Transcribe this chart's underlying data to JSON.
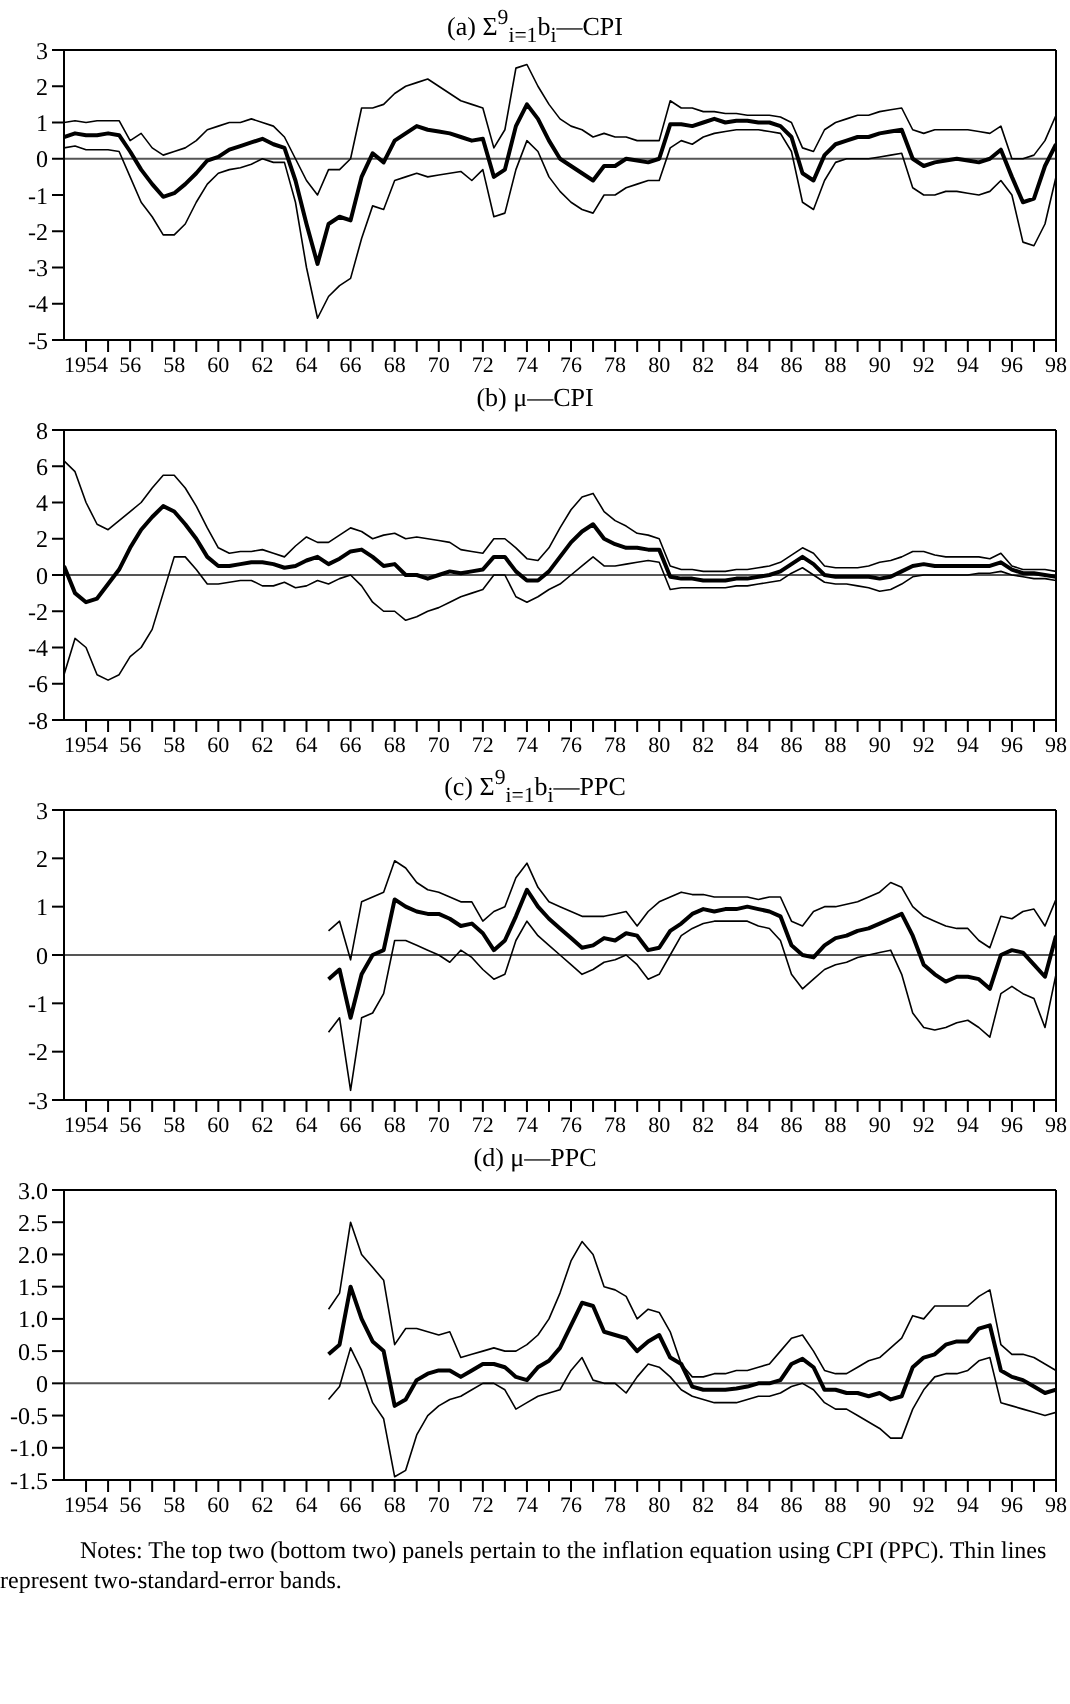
{
  "chart_data": [
    {
      "type": "line",
      "title": "(a) Σ$^{9}$$_{i=1}$b$_{i}$—CPI",
      "marker": "none",
      "x": [
        1953,
        1953.5,
        1954,
        1954.5,
        1955,
        1955.5,
        1956,
        1956.5,
        1957,
        1957.5,
        1958,
        1958.5,
        1959,
        1959.5,
        1960,
        1960.5,
        1961,
        1961.5,
        1962,
        1962.5,
        1963,
        1963.5,
        1964,
        1964.5,
        1965,
        1965.5,
        1966,
        1966.5,
        1967,
        1967.5,
        1968,
        1968.5,
        1969,
        1969.5,
        1970,
        1970.5,
        1971,
        1971.5,
        1972,
        1972.5,
        1973,
        1973.5,
        1974,
        1974.5,
        1975,
        1975.5,
        1976,
        1976.5,
        1977,
        1977.5,
        1978,
        1978.5,
        1979,
        1979.5,
        1980,
        1980.5,
        1981,
        1981.5,
        1982,
        1982.5,
        1983,
        1983.5,
        1984,
        1984.5,
        1985,
        1985.5,
        1986,
        1986.5,
        1987,
        1987.5,
        1988,
        1988.5,
        1989,
        1989.5,
        1990,
        1990.5,
        1991,
        1991.5,
        1992,
        1992.5,
        1993,
        1993.5,
        1994,
        1994.5,
        1995,
        1995.5,
        1996,
        1996.5,
        1997,
        1997.5,
        1998
      ],
      "series": [
        {
          "color": "#000000",
          "values": [
            0.6,
            0.7,
            0.65,
            0.65,
            0.7,
            0.65,
            0.2,
            -0.3,
            -0.7,
            -1.05,
            -0.95,
            -0.7,
            -0.4,
            -0.05,
            0.05,
            0.25,
            0.35,
            0.45,
            0.55,
            0.4,
            0.3,
            -0.6,
            -1.8,
            -2.9,
            -1.8,
            -1.6,
            -1.7,
            -0.5,
            0.15,
            -0.1,
            0.5,
            0.7,
            0.9,
            0.8,
            0.75,
            0.7,
            0.6,
            0.5,
            0.55,
            -0.5,
            -0.3,
            0.9,
            1.5,
            1.1,
            0.5,
            0.0,
            -0.2,
            -0.4,
            -0.6,
            -0.2,
            -0.2,
            0.0,
            -0.05,
            -0.1,
            0.0,
            0.95,
            0.95,
            0.9,
            1.0,
            1.1,
            1.0,
            1.05,
            1.05,
            1.0,
            1.0,
            0.9,
            0.6,
            -0.4,
            -0.6,
            0.1,
            0.4,
            0.5,
            0.6,
            0.6,
            0.7,
            0.75,
            0.8,
            0.0,
            -0.2,
            -0.1,
            -0.05,
            0.0,
            -0.05,
            -0.1,
            0.0,
            0.25,
            -0.5,
            -1.2,
            -1.1,
            -0.2,
            0.4
          ]
        },
        {
          "color": "#000000",
          "values": [
            1.0,
            1.05,
            1.0,
            1.05,
            1.05,
            1.05,
            0.5,
            0.7,
            0.3,
            0.1,
            0.2,
            0.3,
            0.5,
            0.8,
            0.9,
            1.0,
            1.0,
            1.1,
            1.0,
            0.9,
            0.6,
            0.0,
            -0.6,
            -1.0,
            -0.3,
            -0.3,
            0.0,
            1.4,
            1.4,
            1.5,
            1.8,
            2.0,
            2.1,
            2.2,
            2.0,
            1.8,
            1.6,
            1.5,
            1.4,
            0.3,
            0.8,
            2.5,
            2.6,
            2.0,
            1.5,
            1.1,
            0.9,
            0.8,
            0.6,
            0.7,
            0.6,
            0.6,
            0.5,
            0.5,
            0.5,
            1.6,
            1.4,
            1.4,
            1.3,
            1.3,
            1.25,
            1.25,
            1.2,
            1.2,
            1.2,
            1.15,
            1.0,
            0.3,
            0.2,
            0.8,
            1.0,
            1.1,
            1.2,
            1.2,
            1.3,
            1.35,
            1.4,
            0.8,
            0.7,
            0.8,
            0.8,
            0.8,
            0.8,
            0.75,
            0.7,
            0.9,
            0.0,
            0.0,
            0.1,
            0.5,
            1.2
          ]
        },
        {
          "color": "#000000",
          "values": [
            0.3,
            0.35,
            0.25,
            0.25,
            0.25,
            0.2,
            -0.5,
            -1.2,
            -1.6,
            -2.1,
            -2.1,
            -1.8,
            -1.2,
            -0.7,
            -0.4,
            -0.3,
            -0.25,
            -0.15,
            0.0,
            -0.1,
            -0.1,
            -1.2,
            -3.0,
            -4.4,
            -3.8,
            -3.5,
            -3.3,
            -2.2,
            -1.3,
            -1.4,
            -0.6,
            -0.5,
            -0.4,
            -0.5,
            -0.45,
            -0.4,
            -0.35,
            -0.6,
            -0.3,
            -1.6,
            -1.5,
            -0.3,
            0.5,
            0.2,
            -0.5,
            -0.9,
            -1.2,
            -1.4,
            -1.5,
            -1.0,
            -1.0,
            -0.8,
            -0.7,
            -0.6,
            -0.6,
            0.3,
            0.5,
            0.4,
            0.6,
            0.7,
            0.75,
            0.8,
            0.8,
            0.8,
            0.75,
            0.7,
            0.2,
            -1.2,
            -1.4,
            -0.6,
            -0.1,
            0.0,
            0.0,
            0.0,
            0.05,
            0.1,
            0.15,
            -0.8,
            -1.0,
            -1.0,
            -0.9,
            -0.9,
            -0.95,
            -1.0,
            -0.9,
            -0.6,
            -1.0,
            -2.3,
            -2.4,
            -1.8,
            -0.5
          ]
        }
      ],
      "xlim": [
        1953,
        1998
      ],
      "xticks": [
        {
          "value": 1954,
          "label": "1954"
        },
        {
          "value": 1955,
          "label": null
        },
        {
          "value": 1956,
          "label": "56"
        },
        {
          "value": 1957,
          "label": null
        },
        {
          "value": 1958,
          "label": "58"
        },
        {
          "value": 1959,
          "label": null
        },
        {
          "value": 1960,
          "label": "60"
        },
        {
          "value": 1961,
          "label": null
        },
        {
          "value": 1962,
          "label": "62"
        },
        {
          "value": 1963,
          "label": null
        },
        {
          "value": 1964,
          "label": "64"
        },
        {
          "value": 1965,
          "label": null
        },
        {
          "value": 1966,
          "label": "66"
        },
        {
          "value": 1967,
          "label": null
        },
        {
          "value": 1968,
          "label": "68"
        },
        {
          "value": 1969,
          "label": null
        },
        {
          "value": 1970,
          "label": "70"
        },
        {
          "value": 1971,
          "label": null
        },
        {
          "value": 1972,
          "label": "72"
        },
        {
          "value": 1973,
          "label": null
        },
        {
          "value": 1974,
          "label": "74"
        },
        {
          "value": 1975,
          "label": null
        },
        {
          "value": 1976,
          "label": "76"
        },
        {
          "value": 1977,
          "label": null
        },
        {
          "value": 1978,
          "label": "78"
        },
        {
          "value": 1979,
          "label": null
        },
        {
          "value": 1980,
          "label": "80"
        },
        {
          "value": 1981,
          "label": null
        },
        {
          "value": 1982,
          "label": "82"
        },
        {
          "value": 1983,
          "label": null
        },
        {
          "value": 1984,
          "label": "84"
        },
        {
          "value": 1985,
          "label": null
        },
        {
          "value": 1986,
          "label": "86"
        },
        {
          "value": 1987,
          "label": null
        },
        {
          "value": 1988,
          "label": "88"
        },
        {
          "value": 1989,
          "label": null
        },
        {
          "value": 1990,
          "label": "90"
        },
        {
          "value": 1991,
          "label": null
        },
        {
          "value": 1992,
          "label": "92"
        },
        {
          "value": 1993,
          "label": null
        },
        {
          "value": 1994,
          "label": "94"
        },
        {
          "value": 1995,
          "label": null
        },
        {
          "value": 1996,
          "label": "96"
        },
        {
          "value": 1997,
          "label": null
        },
        {
          "value": 1998,
          "label": "98"
        }
      ],
      "ylim": [
        -5,
        3
      ],
      "yticks": [
        -5,
        -4,
        -3,
        -2,
        -1,
        0,
        1,
        2,
        3
      ],
      "ref_lines": [
        {
          "axis": "y",
          "value": 0,
          "color": "#555555"
        }
      ]
    },
    {
      "type": "line",
      "title": "(b) μ—CPI",
      "marker": "none",
      "x": [
        1953,
        1953.5,
        1954,
        1954.5,
        1955,
        1955.5,
        1956,
        1956.5,
        1957,
        1957.5,
        1958,
        1958.5,
        1959,
        1959.5,
        1960,
        1960.5,
        1961,
        1961.5,
        1962,
        1962.5,
        1963,
        1963.5,
        1964,
        1964.5,
        1965,
        1965.5,
        1966,
        1966.5,
        1967,
        1967.5,
        1968,
        1968.5,
        1969,
        1969.5,
        1970,
        1970.5,
        1971,
        1971.5,
        1972,
        1972.5,
        1973,
        1973.5,
        1974,
        1974.5,
        1975,
        1975.5,
        1976,
        1976.5,
        1977,
        1977.5,
        1978,
        1978.5,
        1979,
        1979.5,
        1980,
        1980.5,
        1981,
        1981.5,
        1982,
        1982.5,
        1983,
        1983.5,
        1984,
        1984.5,
        1985,
        1985.5,
        1986,
        1986.5,
        1987,
        1987.5,
        1988,
        1988.5,
        1989,
        1989.5,
        1990,
        1990.5,
        1991,
        1991.5,
        1992,
        1992.5,
        1993,
        1993.5,
        1994,
        1994.5,
        1995,
        1995.5,
        1996,
        1996.5,
        1997,
        1997.5,
        1998
      ],
      "series": [
        {
          "color": "#000000",
          "values": [
            0.5,
            -1.0,
            -1.5,
            -1.3,
            -0.5,
            0.3,
            1.5,
            2.5,
            3.2,
            3.8,
            3.5,
            2.8,
            2.0,
            1.0,
            0.5,
            0.5,
            0.6,
            0.7,
            0.7,
            0.6,
            0.4,
            0.5,
            0.8,
            1.0,
            0.6,
            0.9,
            1.3,
            1.4,
            1.0,
            0.5,
            0.6,
            0.0,
            0.0,
            -0.2,
            0.0,
            0.2,
            0.1,
            0.2,
            0.3,
            1.0,
            1.0,
            0.2,
            -0.3,
            -0.3,
            0.2,
            1.0,
            1.8,
            2.4,
            2.8,
            2.0,
            1.7,
            1.5,
            1.5,
            1.4,
            1.4,
            -0.1,
            -0.2,
            -0.2,
            -0.3,
            -0.3,
            -0.3,
            -0.2,
            -0.2,
            -0.1,
            0.0,
            0.2,
            0.6,
            1.0,
            0.6,
            0.0,
            -0.1,
            -0.1,
            -0.1,
            -0.1,
            -0.2,
            -0.1,
            0.2,
            0.5,
            0.6,
            0.5,
            0.5,
            0.5,
            0.5,
            0.5,
            0.5,
            0.7,
            0.3,
            0.1,
            0.1,
            0.0,
            -0.1
          ]
        },
        {
          "color": "#000000",
          "values": [
            6.3,
            5.7,
            4.0,
            2.8,
            2.5,
            3.0,
            3.5,
            4.0,
            4.8,
            5.5,
            5.5,
            4.8,
            3.8,
            2.6,
            1.5,
            1.2,
            1.3,
            1.3,
            1.4,
            1.2,
            1.0,
            1.6,
            2.1,
            1.8,
            1.8,
            2.2,
            2.6,
            2.4,
            2.0,
            2.2,
            2.3,
            2.0,
            2.1,
            2.0,
            1.9,
            1.8,
            1.4,
            1.3,
            1.2,
            2.0,
            2.0,
            1.5,
            0.9,
            0.8,
            1.5,
            2.6,
            3.6,
            4.3,
            4.5,
            3.5,
            3.0,
            2.7,
            2.3,
            2.2,
            2.0,
            0.5,
            0.3,
            0.3,
            0.2,
            0.2,
            0.2,
            0.3,
            0.3,
            0.4,
            0.5,
            0.7,
            1.1,
            1.5,
            1.2,
            0.5,
            0.4,
            0.4,
            0.4,
            0.5,
            0.7,
            0.8,
            1.0,
            1.3,
            1.3,
            1.1,
            1.0,
            1.0,
            1.0,
            1.0,
            0.9,
            1.2,
            0.5,
            0.3,
            0.3,
            0.3,
            0.2
          ]
        },
        {
          "color": "#000000",
          "values": [
            -5.5,
            -3.5,
            -4.0,
            -5.5,
            -5.8,
            -5.5,
            -4.5,
            -4.0,
            -3.0,
            -1.0,
            1.0,
            1.0,
            0.3,
            -0.5,
            -0.5,
            -0.4,
            -0.3,
            -0.3,
            -0.6,
            -0.6,
            -0.4,
            -0.7,
            -0.6,
            -0.3,
            -0.5,
            -0.2,
            0.0,
            -0.6,
            -1.5,
            -2.0,
            -2.0,
            -2.5,
            -2.3,
            -2.0,
            -1.8,
            -1.5,
            -1.2,
            -1.0,
            -0.8,
            0.0,
            0.0,
            -1.2,
            -1.5,
            -1.2,
            -0.8,
            -0.5,
            0.0,
            0.5,
            1.0,
            0.5,
            0.5,
            0.6,
            0.7,
            0.8,
            0.7,
            -0.8,
            -0.7,
            -0.7,
            -0.7,
            -0.7,
            -0.7,
            -0.6,
            -0.6,
            -0.5,
            -0.4,
            -0.3,
            0.1,
            0.4,
            0.0,
            -0.4,
            -0.5,
            -0.5,
            -0.6,
            -0.7,
            -0.9,
            -0.8,
            -0.5,
            -0.1,
            0.0,
            0.0,
            0.0,
            0.0,
            0.0,
            0.1,
            0.1,
            0.2,
            0.0,
            -0.1,
            -0.2,
            -0.2,
            -0.3
          ]
        }
      ],
      "xlim": [
        1953,
        1998
      ],
      "xticks": [
        {
          "value": 1954,
          "label": "1954"
        },
        {
          "value": 1955,
          "label": null
        },
        {
          "value": 1956,
          "label": "56"
        },
        {
          "value": 1957,
          "label": null
        },
        {
          "value": 1958,
          "label": "58"
        },
        {
          "value": 1959,
          "label": null
        },
        {
          "value": 1960,
          "label": "60"
        },
        {
          "value": 1961,
          "label": null
        },
        {
          "value": 1962,
          "label": "62"
        },
        {
          "value": 1963,
          "label": null
        },
        {
          "value": 1964,
          "label": "64"
        },
        {
          "value": 1965,
          "label": null
        },
        {
          "value": 1966,
          "label": "66"
        },
        {
          "value": 1967,
          "label": null
        },
        {
          "value": 1968,
          "label": "68"
        },
        {
          "value": 1969,
          "label": null
        },
        {
          "value": 1970,
          "label": "70"
        },
        {
          "value": 1971,
          "label": null
        },
        {
          "value": 1972,
          "label": "72"
        },
        {
          "value": 1973,
          "label": null
        },
        {
          "value": 1974,
          "label": "74"
        },
        {
          "value": 1975,
          "label": null
        },
        {
          "value": 1976,
          "label": "76"
        },
        {
          "value": 1977,
          "label": null
        },
        {
          "value": 1978,
          "label": "78"
        },
        {
          "value": 1979,
          "label": null
        },
        {
          "value": 1980,
          "label": "80"
        },
        {
          "value": 1981,
          "label": null
        },
        {
          "value": 1982,
          "label": "82"
        },
        {
          "value": 1983,
          "label": null
        },
        {
          "value": 1984,
          "label": "84"
        },
        {
          "value": 1985,
          "label": null
        },
        {
          "value": 1986,
          "label": "86"
        },
        {
          "value": 1987,
          "label": null
        },
        {
          "value": 1988,
          "label": "88"
        },
        {
          "value": 1989,
          "label": null
        },
        {
          "value": 1990,
          "label": "90"
        },
        {
          "value": 1991,
          "label": null
        },
        {
          "value": 1992,
          "label": "92"
        },
        {
          "value": 1993,
          "label": null
        },
        {
          "value": 1994,
          "label": "94"
        },
        {
          "value": 1995,
          "label": null
        },
        {
          "value": 1996,
          "label": "96"
        },
        {
          "value": 1997,
          "label": null
        },
        {
          "value": 1998,
          "label": "98"
        }
      ],
      "ylim": [
        -8,
        8
      ],
      "yticks": [
        -8,
        -6,
        -4,
        -2,
        0,
        2,
        4,
        6,
        8
      ],
      "ref_lines": [
        {
          "axis": "y",
          "value": 0,
          "color": "#555555"
        }
      ]
    },
    {
      "type": "line",
      "title": "(c) Σ$^{9}$$_{i=1}$b$_{i}$—PPC",
      "marker": "none",
      "x": [
        1965,
        1965.5,
        1966,
        1966.5,
        1967,
        1967.5,
        1968,
        1968.5,
        1969,
        1969.5,
        1970,
        1970.5,
        1971,
        1971.5,
        1972,
        1972.5,
        1973,
        1973.5,
        1974,
        1974.5,
        1975,
        1975.5,
        1976,
        1976.5,
        1977,
        1977.5,
        1978,
        1978.5,
        1979,
        1979.5,
        1980,
        1980.5,
        1981,
        1981.5,
        1982,
        1982.5,
        1983,
        1983.5,
        1984,
        1984.5,
        1985,
        1985.5,
        1986,
        1986.5,
        1987,
        1987.5,
        1988,
        1988.5,
        1989,
        1989.5,
        1990,
        1990.5,
        1991,
        1991.5,
        1992,
        1992.5,
        1993,
        1993.5,
        1994,
        1994.5,
        1995,
        1995.5,
        1996,
        1996.5,
        1997,
        1997.5,
        1998
      ],
      "series": [
        {
          "color": "#000000",
          "values": [
            -0.5,
            -0.3,
            -1.3,
            -0.4,
            0.0,
            0.1,
            1.15,
            1.0,
            0.9,
            0.85,
            0.85,
            0.75,
            0.6,
            0.65,
            0.45,
            0.1,
            0.3,
            0.8,
            1.35,
            1.0,
            0.75,
            0.55,
            0.35,
            0.15,
            0.2,
            0.35,
            0.3,
            0.45,
            0.4,
            0.1,
            0.15,
            0.5,
            0.65,
            0.85,
            0.95,
            0.9,
            0.95,
            0.95,
            1.0,
            0.95,
            0.9,
            0.8,
            0.2,
            0.0,
            -0.05,
            0.2,
            0.35,
            0.4,
            0.5,
            0.55,
            0.65,
            0.75,
            0.85,
            0.4,
            -0.2,
            -0.4,
            -0.55,
            -0.45,
            -0.45,
            -0.5,
            -0.7,
            0.0,
            0.1,
            0.05,
            -0.2,
            -0.45,
            0.4
          ]
        },
        {
          "color": "#000000",
          "values": [
            0.5,
            0.7,
            -0.1,
            1.1,
            1.2,
            1.3,
            1.95,
            1.8,
            1.5,
            1.35,
            1.3,
            1.2,
            1.1,
            1.1,
            0.7,
            0.9,
            1.0,
            1.6,
            1.9,
            1.4,
            1.1,
            1.0,
            0.9,
            0.8,
            0.8,
            0.8,
            0.85,
            0.9,
            0.6,
            0.9,
            1.1,
            1.2,
            1.3,
            1.25,
            1.25,
            1.2,
            1.2,
            1.2,
            1.2,
            1.15,
            1.2,
            1.2,
            0.7,
            0.6,
            0.9,
            1.0,
            1.0,
            1.05,
            1.1,
            1.2,
            1.3,
            1.5,
            1.4,
            1.0,
            0.8,
            0.7,
            0.6,
            0.55,
            0.55,
            0.3,
            0.15,
            0.8,
            0.75,
            0.9,
            0.95,
            0.6,
            1.15
          ]
        },
        {
          "color": "#000000",
          "values": [
            -1.6,
            -1.3,
            -2.8,
            -1.3,
            -1.2,
            -0.8,
            0.3,
            0.3,
            0.2,
            0.1,
            0.0,
            -0.15,
            0.1,
            -0.05,
            -0.3,
            -0.5,
            -0.4,
            0.3,
            0.7,
            0.4,
            0.2,
            0.0,
            -0.2,
            -0.4,
            -0.3,
            -0.15,
            -0.1,
            0.0,
            -0.2,
            -0.5,
            -0.4,
            0.0,
            0.4,
            0.55,
            0.65,
            0.7,
            0.7,
            0.7,
            0.7,
            0.6,
            0.55,
            0.3,
            -0.4,
            -0.7,
            -0.5,
            -0.3,
            -0.2,
            -0.15,
            -0.05,
            0.0,
            0.05,
            0.1,
            -0.4,
            -1.2,
            -1.5,
            -1.55,
            -1.5,
            -1.4,
            -1.35,
            -1.5,
            -1.7,
            -0.8,
            -0.65,
            -0.8,
            -0.9,
            -1.5,
            -0.4
          ]
        }
      ],
      "xlim": [
        1953,
        1998
      ],
      "xticks": [
        {
          "value": 1954,
          "label": "1954"
        },
        {
          "value": 1955,
          "label": null
        },
        {
          "value": 1956,
          "label": "56"
        },
        {
          "value": 1957,
          "label": null
        },
        {
          "value": 1958,
          "label": "58"
        },
        {
          "value": 1959,
          "label": null
        },
        {
          "value": 1960,
          "label": "60"
        },
        {
          "value": 1961,
          "label": null
        },
        {
          "value": 1962,
          "label": "62"
        },
        {
          "value": 1963,
          "label": null
        },
        {
          "value": 1964,
          "label": "64"
        },
        {
          "value": 1965,
          "label": null
        },
        {
          "value": 1966,
          "label": "66"
        },
        {
          "value": 1967,
          "label": null
        },
        {
          "value": 1968,
          "label": "68"
        },
        {
          "value": 1969,
          "label": null
        },
        {
          "value": 1970,
          "label": "70"
        },
        {
          "value": 1971,
          "label": null
        },
        {
          "value": 1972,
          "label": "72"
        },
        {
          "value": 1973,
          "label": null
        },
        {
          "value": 1974,
          "label": "74"
        },
        {
          "value": 1975,
          "label": null
        },
        {
          "value": 1976,
          "label": "76"
        },
        {
          "value": 1977,
          "label": null
        },
        {
          "value": 1978,
          "label": "78"
        },
        {
          "value": 1979,
          "label": null
        },
        {
          "value": 1980,
          "label": "80"
        },
        {
          "value": 1981,
          "label": null
        },
        {
          "value": 1982,
          "label": "82"
        },
        {
          "value": 1983,
          "label": null
        },
        {
          "value": 1984,
          "label": "84"
        },
        {
          "value": 1985,
          "label": null
        },
        {
          "value": 1986,
          "label": "86"
        },
        {
          "value": 1987,
          "label": null
        },
        {
          "value": 1988,
          "label": "88"
        },
        {
          "value": 1989,
          "label": null
        },
        {
          "value": 1990,
          "label": "90"
        },
        {
          "value": 1991,
          "label": null
        },
        {
          "value": 1992,
          "label": "92"
        },
        {
          "value": 1993,
          "label": null
        },
        {
          "value": 1994,
          "label": "94"
        },
        {
          "value": 1995,
          "label": null
        },
        {
          "value": 1996,
          "label": "96"
        },
        {
          "value": 1997,
          "label": null
        },
        {
          "value": 1998,
          "label": "98"
        }
      ],
      "ylim": [
        -3,
        3
      ],
      "yticks": [
        -3,
        -2,
        -1,
        0,
        1,
        2,
        3
      ],
      "ref_lines": [
        {
          "axis": "y",
          "value": 0,
          "color": "#555555"
        }
      ]
    },
    {
      "type": "line",
      "title": "(d) μ—PPC",
      "marker": "none",
      "x": [
        1965,
        1965.5,
        1966,
        1966.5,
        1967,
        1967.5,
        1968,
        1968.5,
        1969,
        1969.5,
        1970,
        1970.5,
        1971,
        1971.5,
        1972,
        1972.5,
        1973,
        1973.5,
        1974,
        1974.5,
        1975,
        1975.5,
        1976,
        1976.5,
        1977,
        1977.5,
        1978,
        1978.5,
        1979,
        1979.5,
        1980,
        1980.5,
        1981,
        1981.5,
        1982,
        1982.5,
        1983,
        1983.5,
        1984,
        1984.5,
        1985,
        1985.5,
        1986,
        1986.5,
        1987,
        1987.5,
        1988,
        1988.5,
        1989,
        1989.5,
        1990,
        1990.5,
        1991,
        1991.5,
        1992,
        1992.5,
        1993,
        1993.5,
        1994,
        1994.5,
        1995,
        1995.5,
        1996,
        1996.5,
        1997,
        1997.5,
        1998
      ],
      "series": [
        {
          "color": "#000000",
          "values": [
            0.45,
            0.6,
            1.5,
            1.0,
            0.65,
            0.5,
            -0.35,
            -0.25,
            0.05,
            0.15,
            0.2,
            0.2,
            0.1,
            0.2,
            0.3,
            0.3,
            0.25,
            0.1,
            0.05,
            0.25,
            0.35,
            0.55,
            0.9,
            1.25,
            1.2,
            0.8,
            0.75,
            0.7,
            0.5,
            0.65,
            0.75,
            0.4,
            0.3,
            -0.05,
            -0.1,
            -0.1,
            -0.1,
            -0.08,
            -0.05,
            0.0,
            0.0,
            0.05,
            0.3,
            0.38,
            0.25,
            -0.1,
            -0.1,
            -0.15,
            -0.15,
            -0.2,
            -0.15,
            -0.25,
            -0.2,
            0.25,
            0.4,
            0.45,
            0.6,
            0.65,
            0.65,
            0.85,
            0.9,
            0.2,
            0.1,
            0.05,
            -0.05,
            -0.15,
            -0.1
          ]
        },
        {
          "color": "#000000",
          "values": [
            1.15,
            1.4,
            2.5,
            2.0,
            1.8,
            1.6,
            0.6,
            0.85,
            0.85,
            0.8,
            0.75,
            0.8,
            0.4,
            0.45,
            0.5,
            0.55,
            0.5,
            0.5,
            0.6,
            0.75,
            1.0,
            1.4,
            1.9,
            2.2,
            2.0,
            1.5,
            1.45,
            1.35,
            1.0,
            1.15,
            1.1,
            0.8,
            0.3,
            0.1,
            0.1,
            0.15,
            0.15,
            0.2,
            0.2,
            0.25,
            0.3,
            0.5,
            0.7,
            0.75,
            0.5,
            0.2,
            0.15,
            0.15,
            0.25,
            0.35,
            0.4,
            0.55,
            0.7,
            1.05,
            1.0,
            1.2,
            1.2,
            1.2,
            1.2,
            1.35,
            1.45,
            0.6,
            0.45,
            0.45,
            0.4,
            0.3,
            0.2
          ]
        },
        {
          "color": "#000000",
          "values": [
            -0.25,
            -0.05,
            0.55,
            0.2,
            -0.3,
            -0.55,
            -1.45,
            -1.35,
            -0.8,
            -0.5,
            -0.35,
            -0.25,
            -0.2,
            -0.1,
            0.0,
            0.0,
            -0.1,
            -0.4,
            -0.3,
            -0.2,
            -0.15,
            -0.1,
            0.2,
            0.4,
            0.05,
            0.0,
            0.0,
            -0.15,
            0.1,
            0.3,
            0.25,
            0.1,
            -0.1,
            -0.2,
            -0.25,
            -0.3,
            -0.3,
            -0.3,
            -0.25,
            -0.2,
            -0.2,
            -0.15,
            -0.05,
            0.0,
            -0.1,
            -0.3,
            -0.4,
            -0.4,
            -0.5,
            -0.6,
            -0.7,
            -0.85,
            -0.85,
            -0.4,
            -0.1,
            0.1,
            0.15,
            0.15,
            0.2,
            0.35,
            0.4,
            -0.3,
            -0.35,
            -0.4,
            -0.45,
            -0.5,
            -0.45
          ]
        }
      ],
      "xlim": [
        1953,
        1998
      ],
      "xticks": [
        {
          "value": 1954,
          "label": "1954"
        },
        {
          "value": 1955,
          "label": null
        },
        {
          "value": 1956,
          "label": "56"
        },
        {
          "value": 1957,
          "label": null
        },
        {
          "value": 1958,
          "label": "58"
        },
        {
          "value": 1959,
          "label": null
        },
        {
          "value": 1960,
          "label": "60"
        },
        {
          "value": 1961,
          "label": null
        },
        {
          "value": 1962,
          "label": "62"
        },
        {
          "value": 1963,
          "label": null
        },
        {
          "value": 1964,
          "label": "64"
        },
        {
          "value": 1965,
          "label": null
        },
        {
          "value": 1966,
          "label": "66"
        },
        {
          "value": 1967,
          "label": null
        },
        {
          "value": 1968,
          "label": "68"
        },
        {
          "value": 1969,
          "label": null
        },
        {
          "value": 1970,
          "label": "70"
        },
        {
          "value": 1971,
          "label": null
        },
        {
          "value": 1972,
          "label": "72"
        },
        {
          "value": 1973,
          "label": null
        },
        {
          "value": 1974,
          "label": "74"
        },
        {
          "value": 1975,
          "label": null
        },
        {
          "value": 1976,
          "label": "76"
        },
        {
          "value": 1977,
          "label": null
        },
        {
          "value": 1978,
          "label": "78"
        },
        {
          "value": 1979,
          "label": null
        },
        {
          "value": 1980,
          "label": "80"
        },
        {
          "value": 1981,
          "label": null
        },
        {
          "value": 1982,
          "label": "82"
        },
        {
          "value": 1983,
          "label": null
        },
        {
          "value": 1984,
          "label": "84"
        },
        {
          "value": 1985,
          "label": null
        },
        {
          "value": 1986,
          "label": "86"
        },
        {
          "value": 1987,
          "label": null
        },
        {
          "value": 1988,
          "label": "88"
        },
        {
          "value": 1989,
          "label": null
        },
        {
          "value": 1990,
          "label": "90"
        },
        {
          "value": 1991,
          "label": null
        },
        {
          "value": 1992,
          "label": "92"
        },
        {
          "value": 1993,
          "label": null
        },
        {
          "value": 1994,
          "label": "94"
        },
        {
          "value": 1995,
          "label": null
        },
        {
          "value": 1996,
          "label": "96"
        },
        {
          "value": 1997,
          "label": null
        },
        {
          "value": 1998,
          "label": "98"
        }
      ],
      "ylim": [
        -1.5,
        3.0
      ],
      "yticks": [
        {
          "value": -1.5,
          "label": "-1.5"
        },
        {
          "value": -1,
          "label": "-1.0"
        },
        {
          "value": -0.5,
          "label": "-0.5"
        },
        0,
        {
          "value": 0.5,
          "label": "0.5"
        },
        {
          "value": 1,
          "label": "1.0"
        },
        {
          "value": 1.5,
          "label": "1.5"
        },
        {
          "value": 2,
          "label": "2.0"
        },
        {
          "value": 2.5,
          "label": "2.5"
        },
        {
          "value": 3,
          "label": "3.0"
        }
      ],
      "ref_lines": [
        {
          "axis": "y",
          "value": 0,
          "color": "#555555"
        }
      ],
      "annotations": [
        "Notes: The top two (bottom two) panels pertain to the inflation equation using CPI (PPC). Thin lines represent two-standard-error bands."
      ]
    }
  ]
}
